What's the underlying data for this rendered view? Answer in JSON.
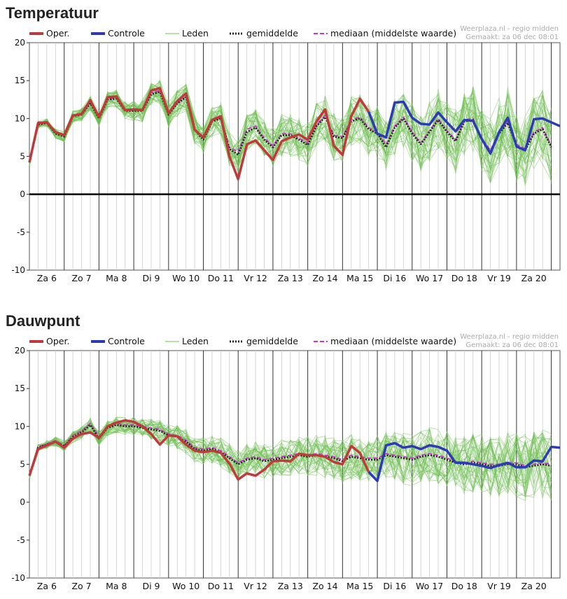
{
  "colors": {
    "oper": "#c0393b",
    "controle": "#2c3bb5",
    "leden": "#6cbf4f",
    "gemiddelde": "#222222",
    "mediaan": "#cc33cc",
    "grid_minor": "#cccccc",
    "grid_major": "#333333",
    "axis_text": "#111111",
    "credit": "#aaaaaa"
  },
  "legend": {
    "oper": "Oper.",
    "controle": "Controle",
    "leden": "Leden",
    "gemiddelde": "gemiddelde",
    "mediaan": "mediaan (middelste waarde)"
  },
  "credit": {
    "line1": "Weerplaza.nl - regio midden",
    "line2": "Gemaakt: za 06 dec 08:01"
  },
  "chart_data": [
    {
      "type": "line",
      "title": "Temperatuur",
      "ylim": [
        -10,
        20
      ],
      "yticks": [
        -10,
        -5,
        0,
        5,
        10,
        15,
        20
      ],
      "x_labels": [
        "Za 6",
        "Zo 7",
        "Ma 8",
        "Di 9",
        "Wo 10",
        "Do 11",
        "Vr 12",
        "Za 13",
        "Zo 14",
        "Ma 15",
        "Di 16",
        "Wo 17",
        "Do 18",
        "Vr 19",
        "Za 20"
      ],
      "x_unit": "6-hour steps from Za 6 00:00",
      "zero_line": true,
      "grid": true,
      "series": [
        {
          "name": "Oper.",
          "x": [
            0,
            1,
            2,
            3,
            4,
            5,
            6,
            7,
            8,
            9,
            10,
            11,
            12,
            13,
            14,
            15,
            16,
            17,
            18,
            19,
            20,
            21,
            22,
            23,
            24,
            25,
            26,
            27,
            28,
            29,
            30,
            31,
            32,
            33,
            34,
            35,
            36,
            37,
            38,
            39
          ],
          "values": [
            4.2,
            9.4,
            9.5,
            8.2,
            7.8,
            10.4,
            10.6,
            12.4,
            10.2,
            12.8,
            12.9,
            11.1,
            11.2,
            11.1,
            13.7,
            14.0,
            10.7,
            12.3,
            13.3,
            8.5,
            7.5,
            9.8,
            10.3,
            5.0,
            2.0,
            6.6,
            7.1,
            5.8,
            4.5,
            7.0,
            7.5,
            7.9,
            7.2,
            9.6,
            11.2,
            6.4,
            5.2,
            10.3,
            12.6,
            10.9
          ]
        },
        {
          "name": "Controle",
          "x": [
            39,
            40,
            41,
            42,
            43,
            44,
            45,
            46,
            47,
            48,
            49,
            50,
            51,
            52,
            53,
            54,
            55,
            56,
            57,
            58,
            59,
            60,
            61,
            62,
            63,
            64,
            65,
            66,
            67,
            68,
            69
          ],
          "values": [
            10.9,
            8.0,
            7.5,
            12.1,
            12.2,
            10.1,
            9.3,
            9.2,
            10.8,
            9.5,
            8.3,
            9.8,
            9.7,
            7.3,
            5.4,
            8.2,
            10.1,
            6.3,
            5.8,
            9.9,
            10.0,
            9.5,
            9.0,
            9.0,
            9.0,
            9.0,
            9.0,
            9.0,
            9.0,
            9.0,
            9.0
          ]
        },
        {
          "name": "gemiddelde",
          "x": [
            0,
            1,
            2,
            3,
            4,
            5,
            6,
            7,
            8,
            9,
            10,
            11,
            12,
            13,
            14,
            15,
            16,
            17,
            18,
            19,
            20,
            21,
            22,
            23,
            24,
            25,
            26,
            27,
            28,
            29,
            30,
            31,
            32,
            33,
            34,
            35,
            36,
            37,
            38,
            39,
            40,
            41,
            42,
            43,
            44,
            45,
            46,
            47,
            48,
            49,
            50,
            51,
            52,
            53,
            54,
            55,
            56,
            57,
            58,
            59,
            60
          ],
          "values": [
            4.2,
            9.2,
            9.4,
            8.0,
            7.6,
            10.3,
            10.5,
            12.0,
            10.0,
            12.5,
            12.6,
            11.0,
            11.0,
            11.0,
            13.2,
            13.5,
            10.5,
            12.0,
            12.8,
            8.5,
            7.2,
            9.6,
            10.0,
            6.0,
            5.2,
            8.2,
            8.8,
            7.2,
            6.2,
            7.8,
            7.8,
            7.2,
            6.5,
            9.0,
            10.2,
            7.6,
            7.4,
            9.6,
            10.0,
            8.6,
            8.0,
            6.2,
            8.8,
            10.0,
            8.0,
            6.6,
            8.2,
            9.8,
            8.2,
            7.0,
            9.6,
            9.8,
            7.2,
            5.6,
            8.0,
            9.4,
            6.4,
            5.8,
            8.0,
            8.6,
            6.2
          ]
        },
        {
          "name": "mediaan (middelste waarde)",
          "x": [
            0,
            1,
            2,
            3,
            4,
            5,
            6,
            7,
            8,
            9,
            10,
            11,
            12,
            13,
            14,
            15,
            16,
            17,
            18,
            19,
            20,
            21,
            22,
            23,
            24,
            25,
            26,
            27,
            28,
            29,
            30,
            31,
            32,
            33,
            34,
            35,
            36,
            37,
            38,
            39,
            40,
            41,
            42,
            43,
            44,
            45,
            46,
            47,
            48,
            49,
            50,
            51,
            52,
            53,
            54,
            55,
            56,
            57,
            58,
            59,
            60
          ],
          "values": [
            4.3,
            9.3,
            9.5,
            8.1,
            7.7,
            10.4,
            10.6,
            12.2,
            10.1,
            12.6,
            12.7,
            11.1,
            11.1,
            11.1,
            13.4,
            13.7,
            10.6,
            12.1,
            12.9,
            8.6,
            7.4,
            9.7,
            10.1,
            6.2,
            5.6,
            8.6,
            9.0,
            7.4,
            6.4,
            8.0,
            8.0,
            7.4,
            6.8,
            9.2,
            10.4,
            7.8,
            7.6,
            9.8,
            10.2,
            8.8,
            8.2,
            6.6,
            9.0,
            10.2,
            8.2,
            6.8,
            8.4,
            10.0,
            8.4,
            7.2,
            9.8,
            10.0,
            7.4,
            5.8,
            8.2,
            9.6,
            6.6,
            6.0,
            8.2,
            8.8,
            6.4
          ]
        }
      ]
    },
    {
      "type": "line",
      "title": "Dauwpunt",
      "ylim": [
        -10,
        20
      ],
      "yticks": [
        -10,
        -5,
        0,
        5,
        10,
        15,
        20
      ],
      "x_labels": [
        "Za 6",
        "Zo 7",
        "Ma 8",
        "Di 9",
        "Wo 10",
        "Do 11",
        "Vr 12",
        "Za 13",
        "Zo 14",
        "Ma 15",
        "Di 16",
        "Wo 17",
        "Do 18",
        "Vr 19",
        "Za 20"
      ],
      "x_unit": "6-hour steps from Za 6 00:00",
      "zero_line": false,
      "grid": true,
      "series": [
        {
          "name": "Oper.",
          "x": [
            0,
            1,
            2,
            3,
            4,
            5,
            6,
            7,
            8,
            9,
            10,
            11,
            12,
            13,
            14,
            15,
            16,
            17,
            18,
            19,
            20,
            21,
            22,
            23,
            24,
            25,
            26,
            27,
            28,
            29,
            30,
            31,
            32,
            33,
            34,
            35,
            36,
            37,
            38,
            39
          ],
          "values": [
            3.5,
            7.0,
            7.5,
            8.0,
            7.2,
            8.4,
            9.0,
            9.2,
            8.5,
            10.0,
            10.5,
            10.8,
            10.6,
            10.0,
            9.0,
            7.6,
            8.8,
            8.7,
            7.6,
            6.8,
            6.6,
            6.8,
            6.5,
            5.1,
            3.0,
            3.8,
            3.5,
            4.3,
            5.4,
            5.5,
            5.4,
            6.4,
            6.2,
            6.2,
            6.0,
            5.3,
            5.0,
            7.4,
            6.5,
            4.0
          ]
        },
        {
          "name": "Controle",
          "x": [
            39,
            40,
            41,
            42,
            43,
            44,
            45,
            46,
            47,
            48,
            49,
            50,
            51,
            52,
            53,
            54,
            55,
            56,
            57,
            58,
            59,
            60,
            61,
            62,
            63,
            64,
            65,
            66,
            67,
            68,
            69
          ],
          "values": [
            4.0,
            2.8,
            7.5,
            7.8,
            7.2,
            7.4,
            7.0,
            7.5,
            7.3,
            6.8,
            5.2,
            5.2,
            5.0,
            4.8,
            4.5,
            4.9,
            5.2,
            4.6,
            4.6,
            5.5,
            5.4,
            7.3,
            7.2,
            7.2,
            7.2,
            7.2,
            7.2,
            7.2,
            7.2,
            7.2,
            7.2
          ]
        },
        {
          "name": "gemiddelde",
          "x": [
            0,
            1,
            2,
            3,
            4,
            5,
            6,
            7,
            8,
            9,
            10,
            11,
            12,
            13,
            14,
            15,
            16,
            17,
            18,
            19,
            20,
            21,
            22,
            23,
            24,
            25,
            26,
            27,
            28,
            29,
            30,
            31,
            32,
            33,
            34,
            35,
            36,
            37,
            38,
            39,
            40,
            41,
            42,
            43,
            44,
            45,
            46,
            47,
            48,
            49,
            50,
            51,
            52,
            53,
            54,
            55,
            56,
            57,
            58,
            59,
            60
          ],
          "values": [
            3.5,
            7.2,
            7.6,
            8.0,
            7.4,
            8.6,
            9.2,
            10.2,
            8.4,
            9.8,
            10.2,
            10.0,
            10.0,
            9.8,
            9.6,
            9.4,
            8.8,
            8.6,
            8.0,
            7.0,
            6.8,
            7.0,
            6.6,
            5.8,
            5.0,
            5.6,
            5.8,
            5.4,
            5.6,
            5.8,
            6.0,
            6.2,
            6.0,
            6.2,
            6.0,
            5.8,
            5.4,
            6.0,
            5.8,
            5.6,
            5.6,
            6.2,
            6.0,
            5.8,
            5.6,
            6.0,
            6.2,
            6.0,
            5.6,
            5.2,
            5.0,
            5.2,
            5.0,
            4.8,
            4.8,
            5.0,
            5.0,
            4.6,
            4.8,
            5.0,
            4.8
          ]
        },
        {
          "name": "mediaan (middelste waarde)",
          "x": [
            0,
            1,
            2,
            3,
            4,
            5,
            6,
            7,
            8,
            9,
            10,
            11,
            12,
            13,
            14,
            15,
            16,
            17,
            18,
            19,
            20,
            21,
            22,
            23,
            24,
            25,
            26,
            27,
            28,
            29,
            30,
            31,
            32,
            33,
            34,
            35,
            36,
            37,
            38,
            39,
            40,
            41,
            42,
            43,
            44,
            45,
            46,
            47,
            48,
            49,
            50,
            51,
            52,
            53,
            54,
            55,
            56,
            57,
            58,
            59,
            60
          ],
          "values": [
            3.6,
            7.3,
            7.7,
            8.1,
            7.5,
            8.8,
            9.4,
            10.4,
            8.6,
            10.0,
            10.4,
            10.2,
            10.2,
            10.0,
            9.8,
            9.6,
            9.0,
            8.8,
            8.2,
            7.2,
            7.0,
            7.2,
            6.8,
            6.0,
            5.2,
            5.8,
            6.0,
            5.6,
            5.8,
            6.0,
            6.2,
            6.4,
            6.2,
            6.4,
            6.2,
            6.0,
            5.6,
            6.2,
            6.0,
            5.8,
            5.8,
            6.4,
            6.2,
            6.0,
            5.8,
            6.2,
            6.4,
            6.2,
            5.8,
            5.4,
            5.2,
            5.4,
            5.2,
            5.0,
            5.0,
            5.2,
            5.2,
            4.8,
            5.0,
            5.2,
            5.0
          ]
        }
      ]
    }
  ]
}
